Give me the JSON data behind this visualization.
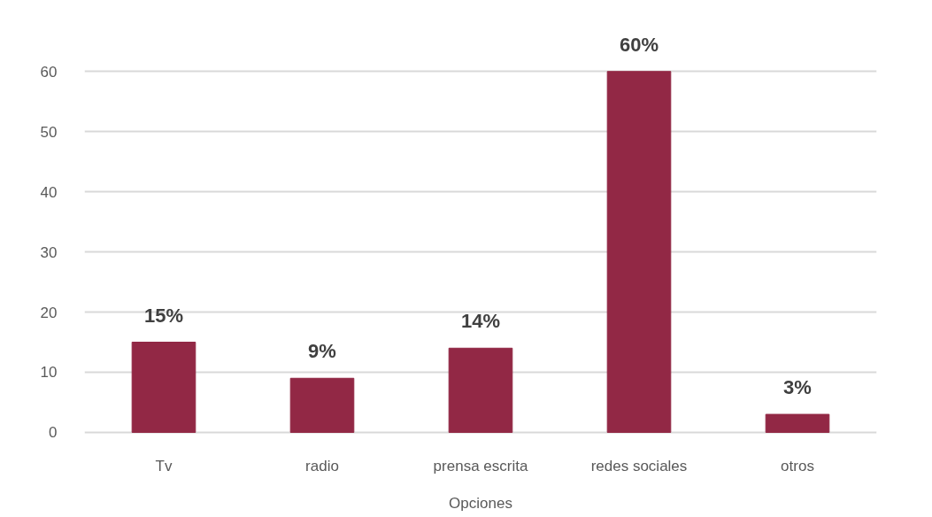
{
  "chart_data": {
    "type": "bar",
    "categories": [
      "Tv",
      "radio",
      "prensa escrita",
      "redes sociales",
      "otros"
    ],
    "values": [
      15,
      9,
      14,
      60,
      3
    ],
    "value_labels": [
      "15%",
      "9%",
      "14%",
      "60%",
      "3%"
    ],
    "color": "#922845",
    "xlabel": "Opciones",
    "ylim": [
      0,
      60
    ],
    "yticks": [
      0,
      10,
      20,
      30,
      40,
      50,
      60
    ],
    "grid": "y"
  }
}
